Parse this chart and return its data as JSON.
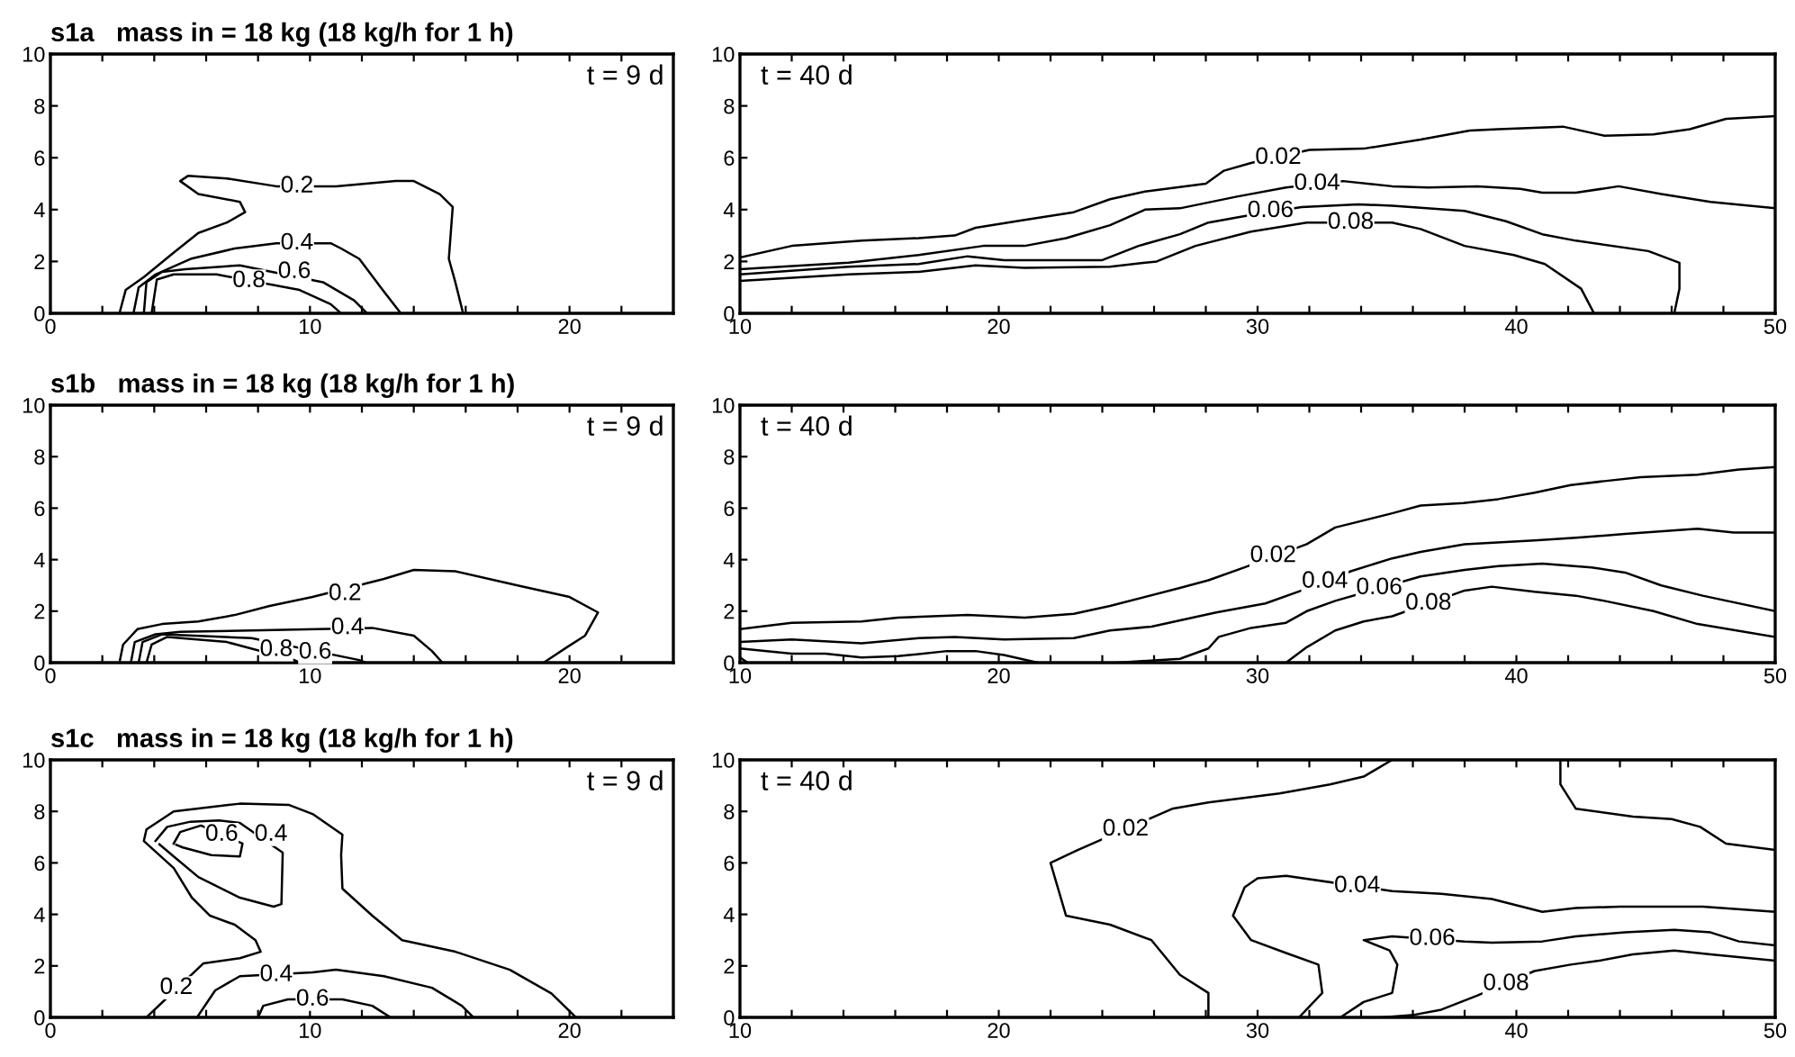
{
  "chart_data": [
    {
      "type": "line",
      "title": "s1a   mass in = 18 kg (18 kg/h for 1 h)",
      "xlim": [
        0,
        24
      ],
      "ylim": [
        0,
        10
      ],
      "xticks": [
        0,
        {
          "value": 2,
          "label": null
        },
        {
          "value": 4,
          "label": null
        },
        {
          "value": 6,
          "label": null
        },
        {
          "value": 8,
          "label": null
        },
        10,
        {
          "value": 12,
          "label": null
        },
        {
          "value": 14,
          "label": null
        },
        {
          "value": 16,
          "label": null
        },
        {
          "value": 18,
          "label": null
        },
        20,
        {
          "value": 22,
          "label": null
        }
      ],
      "yticks": [
        0,
        2,
        4,
        6,
        8,
        10
      ],
      "grid": false,
      "marker": "none",
      "line_style": "solid",
      "series": [
        {
          "color": "#000000",
          "x": [
            2.66,
            2.9,
            3.6,
            4.7,
            5.7,
            6.8,
            7.5,
            7.3,
            5.7,
            5.0,
            5.3,
            6.8,
            8.7,
            11.0,
            13.3,
            14.0,
            15.0,
            15.5,
            15.35,
            15.6,
            15.9
          ],
          "values": [
            0,
            0.9,
            1.4,
            2.3,
            3.1,
            3.5,
            3.9,
            4.3,
            4.6,
            5.1,
            5.3,
            5.2,
            4.9,
            4.9,
            5.1,
            5.1,
            4.6,
            4.1,
            2.1,
            1.2,
            0
          ]
        },
        {
          "color": "#000000",
          "x": [
            3.2,
            3.4,
            4.05,
            5.4,
            7.1,
            8.7,
            10.8,
            11.2,
            11.9,
            12.8,
            13.5
          ],
          "values": [
            0,
            1.0,
            1.5,
            2.1,
            2.5,
            2.7,
            2.7,
            2.5,
            2.1,
            0.9,
            0
          ]
        },
        {
          "color": "#000000",
          "x": [
            3.6,
            3.7,
            4.3,
            5.2,
            7.3,
            10.5,
            11.7,
            12.2
          ],
          "values": [
            0,
            1.2,
            1.6,
            1.7,
            1.85,
            1.2,
            0.5,
            0
          ]
        },
        {
          "color": "#000000",
          "x": [
            3.9,
            4.1,
            4.75,
            6.4,
            9.6,
            10.8,
            11.2
          ],
          "values": [
            0,
            1.3,
            1.5,
            1.5,
            0.9,
            0.35,
            0
          ]
        }
      ],
      "annotations": [
        "t = 9 d",
        {
          "text": "0.2",
          "x": 9.5,
          "y": 4.9
        },
        {
          "text": "0.4",
          "x": 9.5,
          "y": 2.7
        },
        {
          "text": "0.6",
          "x": 9.4,
          "y": 1.6
        },
        {
          "text": "0.8",
          "x": 7.65,
          "y": 1.25
        }
      ]
    },
    {
      "type": "line",
      "xlim": [
        10,
        50
      ],
      "ylim": [
        0,
        10
      ],
      "xticks": [
        10,
        {
          "value": 12,
          "label": null
        },
        {
          "value": 14,
          "label": null
        },
        {
          "value": 16,
          "label": null
        },
        {
          "value": 18,
          "label": null
        },
        20,
        {
          "value": 22,
          "label": null
        },
        {
          "value": 24,
          "label": null
        },
        {
          "value": 26,
          "label": null
        },
        {
          "value": 28,
          "label": null
        },
        30,
        {
          "value": 32,
          "label": null
        },
        {
          "value": 34,
          "label": null
        },
        {
          "value": 36,
          "label": null
        },
        {
          "value": 38,
          "label": null
        },
        40,
        {
          "value": 42,
          "label": null
        },
        {
          "value": 44,
          "label": null
        },
        {
          "value": 46,
          "label": null
        },
        {
          "value": 48,
          "label": null
        },
        50
      ],
      "yticks": [
        0,
        2,
        4,
        6,
        8,
        10
      ],
      "grid": false,
      "marker": "none",
      "line_style": "solid",
      "series": [
        {
          "color": "#000000",
          "x": [
            10,
            12,
            14.7,
            16.9,
            18.3,
            19.1,
            21.0,
            22.9,
            24.3,
            25.65,
            28.0,
            28.7,
            29.75,
            32.0,
            34.1,
            36.3,
            38.2,
            39.3,
            41.8,
            43.4,
            45.3,
            46.7,
            48.1,
            50
          ],
          "values": [
            2.15,
            2.6,
            2.8,
            2.9,
            3.0,
            3.3,
            3.6,
            3.9,
            4.4,
            4.7,
            5.0,
            5.5,
            5.8,
            6.3,
            6.35,
            6.7,
            7.05,
            7.1,
            7.2,
            6.85,
            6.9,
            7.1,
            7.5,
            7.6
          ]
        },
        {
          "color": "#000000",
          "x": [
            10,
            14.2,
            16.9,
            19.4,
            21.0,
            22.6,
            24.3,
            25.65,
            27.0,
            29.2,
            31.1,
            33.3,
            35.2,
            36.6,
            38.5,
            40.15,
            41.0,
            42.3,
            43.95,
            45.6,
            47.5,
            50
          ],
          "values": [
            1.7,
            1.95,
            2.25,
            2.6,
            2.6,
            2.9,
            3.4,
            4.0,
            4.05,
            4.5,
            4.85,
            5.1,
            4.9,
            4.85,
            4.9,
            4.8,
            4.65,
            4.65,
            4.9,
            4.6,
            4.3,
            4.05
          ]
        },
        {
          "color": "#000000",
          "x": [
            10,
            14.2,
            16.9,
            18.8,
            20.2,
            24.0,
            25.4,
            27.0,
            28.1,
            29.5,
            31.7,
            33.9,
            35.2,
            38.0,
            39.6,
            41.0,
            42.3,
            45.1,
            46.3,
            46.3,
            46.1
          ],
          "values": [
            1.5,
            1.8,
            1.9,
            2.2,
            2.05,
            2.05,
            2.6,
            3.05,
            3.5,
            3.75,
            4.1,
            4.2,
            4.15,
            3.95,
            3.55,
            3.05,
            2.8,
            2.4,
            1.95,
            0.95,
            0
          ]
        },
        {
          "color": "#000000",
          "x": [
            10,
            14.2,
            16.9,
            19.1,
            21.0,
            24.3,
            26.1,
            27.6,
            29.75,
            31.9,
            35.2,
            36.3,
            38.0,
            39.9,
            41.1,
            42.5,
            43.0
          ],
          "values": [
            1.25,
            1.5,
            1.6,
            1.85,
            1.75,
            1.8,
            2.0,
            2.6,
            3.15,
            3.5,
            3.5,
            3.25,
            2.6,
            2.25,
            1.9,
            0.95,
            0
          ]
        }
      ],
      "annotations": [
        "t = 40 d",
        {
          "text": "0.02",
          "x": 30.8,
          "y": 6.0
        },
        {
          "text": "0.04",
          "x": 32.3,
          "y": 5.0
        },
        {
          "text": "0.06",
          "x": 30.5,
          "y": 3.95
        },
        {
          "text": "0.08",
          "x": 33.6,
          "y": 3.5
        }
      ]
    },
    {
      "type": "line",
      "title": "s1b   mass in = 18 kg (18 kg/h for 1 h)",
      "xlim": [
        0,
        24
      ],
      "ylim": [
        0,
        10
      ],
      "xticks": [
        0,
        {
          "value": 2,
          "label": null
        },
        {
          "value": 4,
          "label": null
        },
        {
          "value": 6,
          "label": null
        },
        {
          "value": 8,
          "label": null
        },
        10,
        {
          "value": 12,
          "label": null
        },
        {
          "value": 14,
          "label": null
        },
        {
          "value": 16,
          "label": null
        },
        {
          "value": 18,
          "label": null
        },
        20,
        {
          "value": 22,
          "label": null
        }
      ],
      "yticks": [
        0,
        2,
        4,
        6,
        8,
        10
      ],
      "grid": false,
      "marker": "none",
      "line_style": "solid",
      "series": [
        {
          "color": "#000000",
          "x": [
            2.66,
            2.8,
            3.35,
            4.3,
            5.7,
            7.1,
            8.45,
            10.1,
            12.85,
            14.0,
            15.6,
            18.0,
            20.0,
            21.1,
            20.6,
            19.9,
            19.0
          ],
          "values": [
            0,
            0.7,
            1.3,
            1.5,
            1.6,
            1.85,
            2.2,
            2.55,
            3.25,
            3.6,
            3.55,
            3.0,
            2.55,
            1.95,
            1.05,
            0.6,
            0
          ]
        },
        {
          "color": "#000000",
          "x": [
            3.1,
            3.25,
            4.05,
            5.0,
            7.75,
            12.4,
            14.0,
            14.7,
            15.1
          ],
          "values": [
            0,
            0.8,
            1.1,
            1.2,
            1.25,
            1.35,
            1.05,
            0.45,
            0
          ]
        },
        {
          "color": "#000000",
          "x": [
            3.4,
            3.55,
            4.3,
            7.75,
            11.9,
            12.15
          ],
          "values": [
            0,
            0.8,
            1.1,
            0.95,
            0.1,
            0
          ]
        },
        {
          "color": "#000000",
          "x": [
            3.7,
            3.9,
            4.5,
            6.8,
            9.4,
            9.6
          ],
          "values": [
            0,
            0.7,
            1.0,
            0.8,
            0.1,
            0
          ]
        }
      ],
      "annotations": [
        "t = 9 d",
        {
          "text": "0.2",
          "x": 11.35,
          "y": 2.67
        },
        {
          "text": "0.4",
          "x": 11.45,
          "y": 1.35
        },
        {
          "text": "0.8",
          "x": 8.7,
          "y": 0.5
        },
        {
          "text": "0.6",
          "x": 10.2,
          "y": 0.4
        }
      ]
    },
    {
      "type": "line",
      "xlim": [
        10,
        50
      ],
      "ylim": [
        0,
        10
      ],
      "xticks": [
        10,
        {
          "value": 12,
          "label": null
        },
        {
          "value": 14,
          "label": null
        },
        {
          "value": 16,
          "label": null
        },
        {
          "value": 18,
          "label": null
        },
        20,
        {
          "value": 22,
          "label": null
        },
        {
          "value": 24,
          "label": null
        },
        {
          "value": 26,
          "label": null
        },
        {
          "value": 28,
          "label": null
        },
        30,
        {
          "value": 32,
          "label": null
        },
        {
          "value": 34,
          "label": null
        },
        {
          "value": 36,
          "label": null
        },
        {
          "value": 38,
          "label": null
        },
        40,
        {
          "value": 42,
          "label": null
        },
        {
          "value": 44,
          "label": null
        },
        {
          "value": 46,
          "label": null
        },
        {
          "value": 48,
          "label": null
        },
        50
      ],
      "yticks": [
        0,
        2,
        4,
        6,
        8,
        10
      ],
      "grid": false,
      "marker": "none",
      "line_style": "solid",
      "series": [
        {
          "color": "#000000",
          "x": [
            10,
            12,
            14.7,
            16.1,
            18.8,
            21.0,
            22.9,
            24.3,
            27.0,
            28.1,
            29.5,
            31.9,
            33.0,
            35.2,
            36.3,
            37.95,
            39.3,
            40.7,
            42.1,
            43.4,
            44.8,
            47.0,
            48.6,
            50
          ],
          "values": [
            1.3,
            1.55,
            1.6,
            1.75,
            1.85,
            1.75,
            1.9,
            2.2,
            2.9,
            3.2,
            3.7,
            4.6,
            5.25,
            5.8,
            6.1,
            6.2,
            6.35,
            6.6,
            6.9,
            7.05,
            7.2,
            7.3,
            7.5,
            7.6
          ]
        },
        {
          "color": "#000000",
          "x": [
            10,
            12,
            14.7,
            16.9,
            18.3,
            20.2,
            22.9,
            24.3,
            25.9,
            28.4,
            30.3,
            31.7,
            33.6,
            35.2,
            36.3,
            38.0,
            40.7,
            42.3,
            44.2,
            47.0,
            48.4,
            50
          ],
          "values": [
            0.8,
            0.9,
            0.75,
            0.95,
            1.0,
            0.9,
            0.95,
            1.25,
            1.4,
            1.95,
            2.3,
            2.8,
            3.55,
            4.05,
            4.3,
            4.6,
            4.75,
            4.85,
            5.0,
            5.2,
            5.05,
            5.05
          ]
        },
        {
          "color": "#000000",
          "x": [
            10,
            12,
            13.3,
            14.7,
            16.1,
            18.0,
            19.1,
            20.2,
            21.5
          ],
          "values": [
            0.55,
            0.35,
            0.35,
            0.2,
            0.25,
            0.45,
            0.45,
            0.3,
            0
          ]
        },
        {
          "color": "#000000",
          "x": [
            24.6,
            27.0,
            28.1,
            28.5,
            29.75,
            31.1,
            31.9,
            33.0,
            36.3,
            38.0,
            39.3,
            41.0,
            42.9,
            44.2,
            45.6,
            47.2,
            50
          ],
          "values": [
            0,
            0.15,
            0.55,
            1.0,
            1.35,
            1.55,
            2.0,
            2.4,
            3.35,
            3.6,
            3.75,
            3.85,
            3.7,
            3.5,
            3.0,
            2.6,
            2.0
          ]
        },
        {
          "color": "#000000",
          "x": [
            10,
            10.3
          ],
          "values": [
            0.2,
            0
          ]
        },
        {
          "color": "#000000",
          "x": [
            31.1,
            31.9,
            33.0,
            34.1,
            35.2,
            38.0,
            39.05,
            40.7,
            42.3,
            43.4,
            45.3,
            47.0,
            50
          ],
          "values": [
            0,
            0.6,
            1.25,
            1.6,
            1.8,
            2.8,
            2.95,
            2.75,
            2.6,
            2.4,
            2.0,
            1.5,
            1.0
          ]
        }
      ],
      "annotations": [
        "t = 40 d",
        {
          "text": "0.02",
          "x": 30.6,
          "y": 4.15
        },
        {
          "text": "0.04",
          "x": 32.6,
          "y": 3.15
        },
        {
          "text": "0.06",
          "x": 34.7,
          "y": 2.9
        },
        {
          "text": "0.08",
          "x": 36.6,
          "y": 2.3
        }
      ]
    },
    {
      "type": "line",
      "title": "s1c   mass in = 18 kg (18 kg/h for 1 h)",
      "xlim": [
        0,
        24
      ],
      "ylim": [
        0,
        10
      ],
      "xticks": [
        0,
        {
          "value": 2,
          "label": null
        },
        {
          "value": 4,
          "label": null
        },
        {
          "value": 6,
          "label": null
        },
        {
          "value": 8,
          "label": null
        },
        10,
        {
          "value": 12,
          "label": null
        },
        {
          "value": 14,
          "label": null
        },
        {
          "value": 16,
          "label": null
        },
        {
          "value": 18,
          "label": null
        },
        20,
        {
          "value": 22,
          "label": null
        }
      ],
      "yticks": [
        0,
        2,
        4,
        6,
        8,
        10
      ],
      "grid": false,
      "marker": "none",
      "line_style": "solid",
      "series": [
        {
          "color": "#000000",
          "x": [
            3.7,
            5.9,
            7.3,
            8.1,
            7.9,
            7.1,
            6.15,
            5.45,
            4.75,
            3.6,
            3.7,
            4.75,
            7.3,
            9.2,
            10.1,
            11.25,
            11.2,
            11.25,
            12.4,
            13.55,
            15.6,
            17.7,
            19.3,
            20.25
          ],
          "values": [
            0,
            2.1,
            2.3,
            2.55,
            3.0,
            3.6,
            3.95,
            4.65,
            5.8,
            6.85,
            7.3,
            8.0,
            8.3,
            8.25,
            7.9,
            7.1,
            6.3,
            5.0,
            3.95,
            3.0,
            2.55,
            1.85,
            0.93,
            0
          ]
        },
        {
          "color": "#000000",
          "x": [
            4.05,
            4.5,
            5.4,
            6.5,
            7.3,
            8.95,
            8.9,
            8.6,
            7.3,
            5.7,
            4.75,
            4.2
          ],
          "values": [
            6.85,
            7.4,
            7.6,
            7.65,
            7.55,
            6.4,
            4.4,
            4.3,
            4.65,
            5.45,
            6.25,
            6.72
          ]
        },
        {
          "color": "#000000",
          "x": [
            4.75,
            5.0,
            5.8,
            7.4,
            7.3,
            6.2,
            5.1,
            4.85
          ],
          "values": [
            6.75,
            7.2,
            7.45,
            6.75,
            6.25,
            6.3,
            6.6,
            6.7
          ]
        },
        {
          "color": "#000000",
          "x": [
            5.65,
            6.35,
            7.3,
            10.1,
            11.0,
            12.85,
            14.7,
            15.85,
            16.3
          ],
          "values": [
            0,
            1.05,
            1.6,
            1.75,
            1.85,
            1.6,
            1.15,
            0.45,
            0
          ]
        },
        {
          "color": "#000000",
          "x": [
            8.0,
            8.2,
            9.15,
            11.25,
            12.4,
            13.1
          ],
          "values": [
            0,
            0.45,
            0.7,
            0.7,
            0.45,
            0
          ]
        }
      ],
      "annotations": [
        "t = 9 d",
        {
          "text": "0.2",
          "x": 4.85,
          "y": 1.15
        },
        {
          "text": "0.4",
          "x": 8.5,
          "y": 7.1
        },
        {
          "text": "0.6",
          "x": 6.6,
          "y": 7.1
        },
        {
          "text": "0.4",
          "x": 8.7,
          "y": 1.65
        },
        {
          "text": "0.6",
          "x": 10.1,
          "y": 0.7
        }
      ]
    },
    {
      "type": "line",
      "xlim": [
        10,
        50
      ],
      "ylim": [
        0,
        10
      ],
      "xticks": [
        10,
        {
          "value": 12,
          "label": null
        },
        {
          "value": 14,
          "label": null
        },
        {
          "value": 16,
          "label": null
        },
        {
          "value": 18,
          "label": null
        },
        20,
        {
          "value": 22,
          "label": null
        },
        {
          "value": 24,
          "label": null
        },
        {
          "value": 26,
          "label": null
        },
        {
          "value": 28,
          "label": null
        },
        30,
        {
          "value": 32,
          "label": null
        },
        {
          "value": 34,
          "label": null
        },
        {
          "value": 36,
          "label": null
        },
        {
          "value": 38,
          "label": null
        },
        40,
        {
          "value": 42,
          "label": null
        },
        {
          "value": 44,
          "label": null
        },
        {
          "value": 46,
          "label": null
        },
        {
          "value": 48,
          "label": null
        },
        50
      ],
      "yticks": [
        0,
        2,
        4,
        6,
        8,
        10
      ],
      "grid": false,
      "marker": "none",
      "line_style": "solid",
      "series": [
        {
          "color": "#000000",
          "x": [
            35.2,
            34.1,
            32.8,
            30.85,
            28.1,
            26.7,
            23.05,
            22.0,
            22.6,
            24.3,
            25.9,
            27.0,
            28.1,
            28.1
          ],
          "values": [
            10,
            9.35,
            9.05,
            8.7,
            8.35,
            8.1,
            6.5,
            6.0,
            3.95,
            3.6,
            3.0,
            1.65,
            0.95,
            0
          ]
        },
        {
          "color": "#000000",
          "x": [
            41.7,
            41.7,
            42.3,
            44.5,
            46.0,
            47.1,
            48.1,
            50
          ],
          "values": [
            10,
            9.05,
            8.1,
            7.8,
            7.7,
            7.4,
            6.75,
            6.5
          ]
        },
        {
          "color": "#000000",
          "x": [
            31.6,
            32.5,
            32.35,
            31.1,
            29.75,
            29.05,
            29.5,
            30.0,
            31.1,
            35.2,
            37.1,
            39.05,
            41.0,
            42.3,
            44.0,
            45.6,
            47.2,
            50
          ],
          "values": [
            0,
            0.95,
            2.05,
            2.5,
            3.0,
            3.95,
            5.05,
            5.4,
            5.5,
            4.9,
            4.8,
            4.6,
            4.1,
            4.25,
            4.3,
            4.3,
            4.3,
            4.1
          ]
        },
        {
          "color": "#000000",
          "x": [
            33.2,
            34.1,
            35.2,
            35.4,
            35.1,
            34.1,
            35.2,
            38.0,
            39.05,
            41.0,
            42.3,
            44.2,
            46.1,
            47.5,
            48.6,
            50
          ],
          "values": [
            0,
            0.6,
            0.95,
            2.05,
            2.6,
            3.0,
            3.15,
            2.95,
            2.9,
            2.95,
            3.15,
            3.3,
            3.4,
            3.3,
            2.95,
            2.8
          ]
        },
        {
          "color": "#000000",
          "x": [
            34.8,
            36.05,
            37.1,
            38.5,
            40.7,
            42.1,
            43.2,
            44.5,
            46.1,
            47.5,
            50
          ],
          "values": [
            0,
            0.1,
            0.3,
            0.85,
            1.8,
            2.05,
            2.2,
            2.45,
            2.6,
            2.45,
            2.2
          ]
        }
      ],
      "annotations": [
        "t = 40 d",
        {
          "text": "0.02",
          "x": 24.9,
          "y": 7.3
        },
        {
          "text": "0.04",
          "x": 33.85,
          "y": 5.1
        },
        {
          "text": "0.06",
          "x": 36.75,
          "y": 3.05
        },
        {
          "text": "0.08",
          "x": 39.6,
          "y": 1.3
        }
      ]
    }
  ]
}
